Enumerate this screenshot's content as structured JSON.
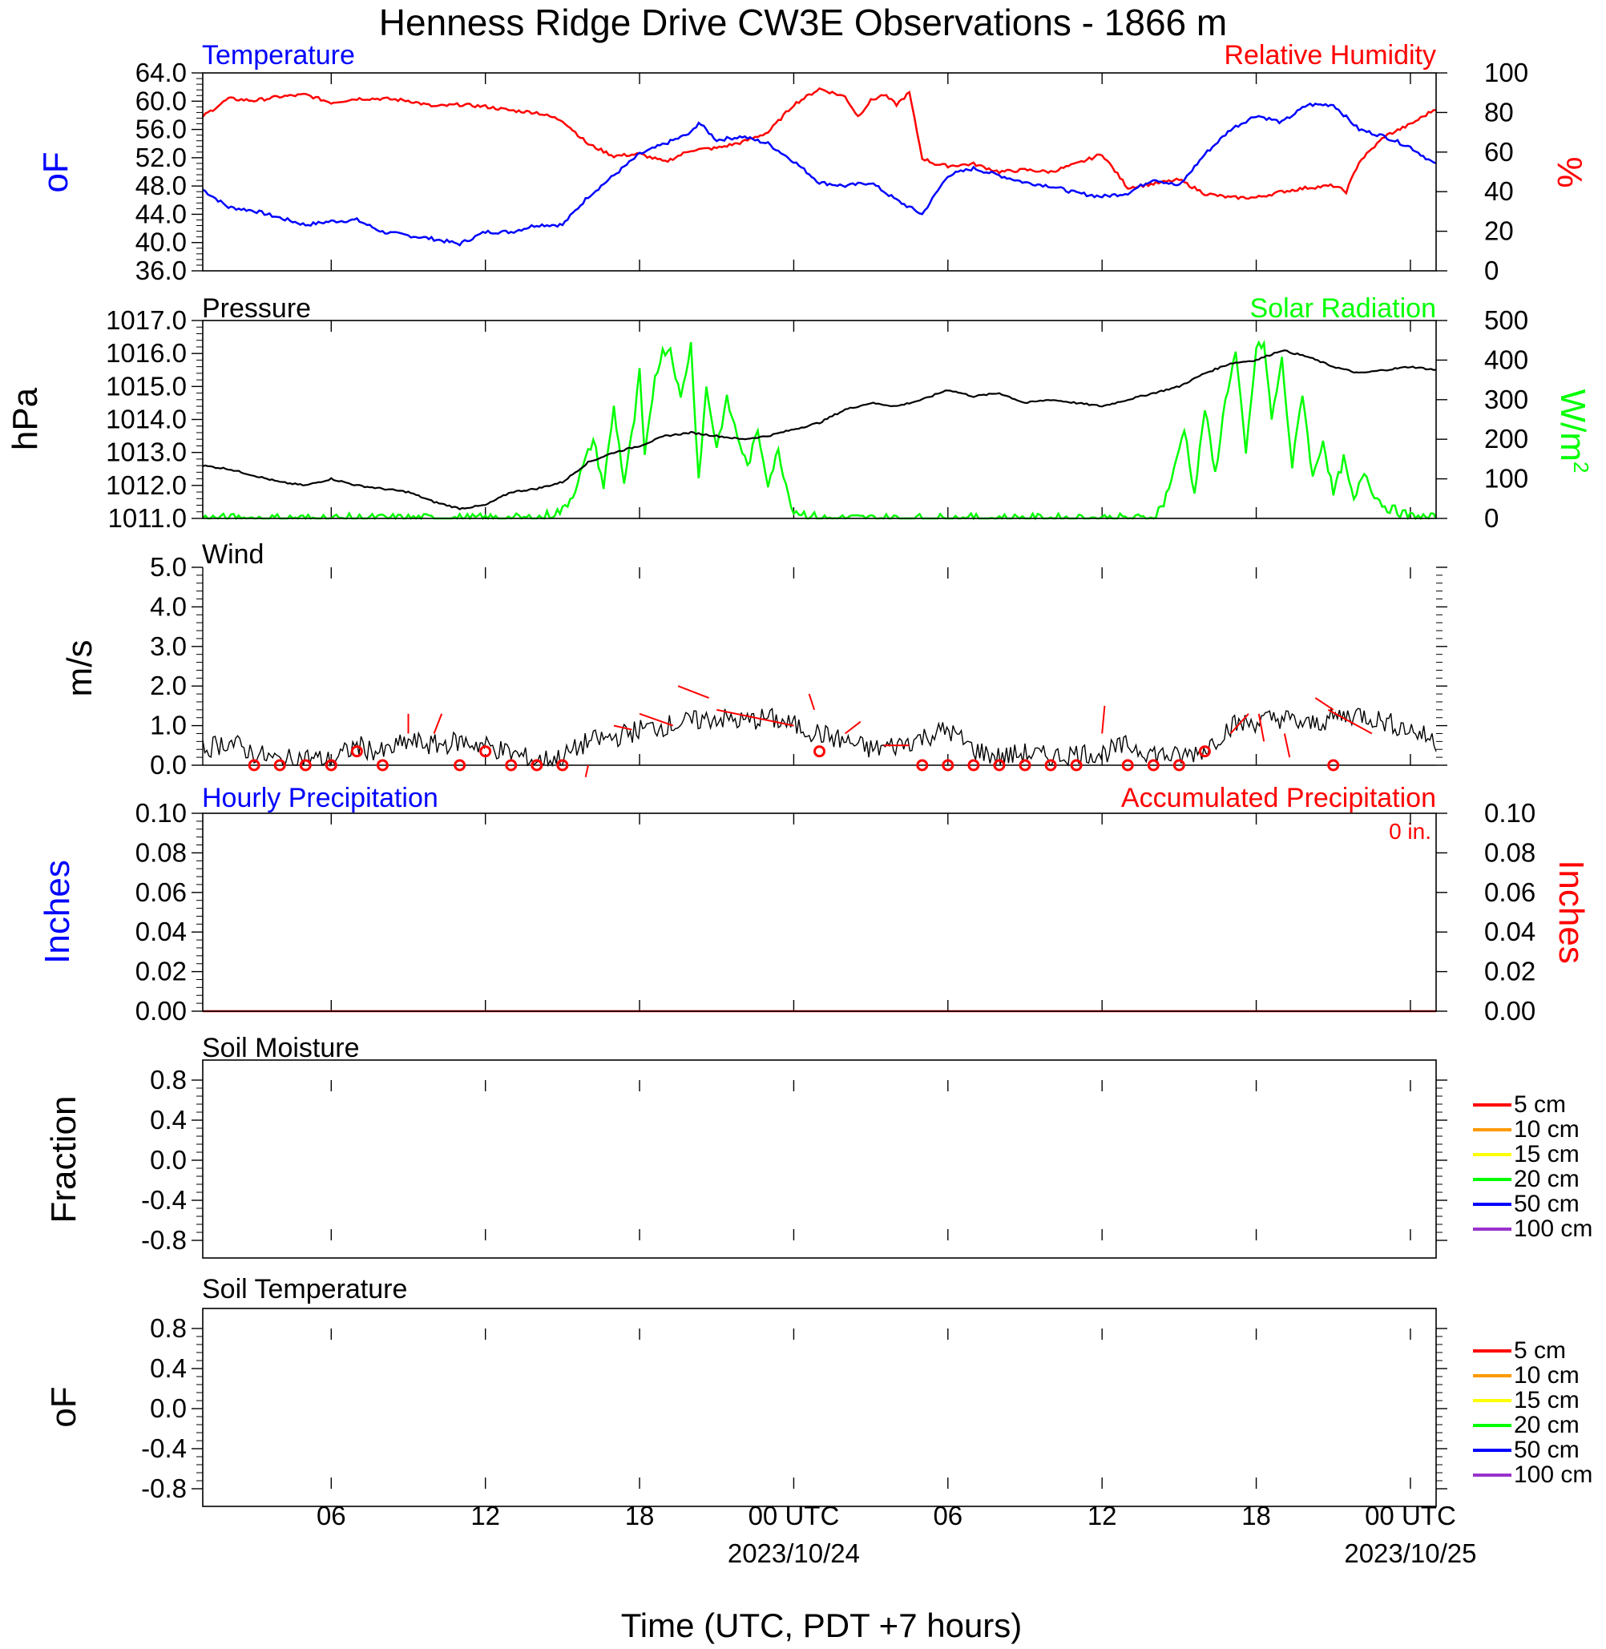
{
  "title": "Henness Ridge Drive CW3E Observations - 1866 m",
  "x_axis": {
    "title": "Time (UTC, PDT +7 hours)",
    "ticks": [
      {
        "hour": 6,
        "label": "06"
      },
      {
        "hour": 12,
        "label": "12"
      },
      {
        "hour": 18,
        "label": "18"
      },
      {
        "hour": 24,
        "label": "00 UTC",
        "date": "2023/10/24"
      },
      {
        "hour": 30,
        "label": "06"
      },
      {
        "hour": 36,
        "label": "12"
      },
      {
        "hour": 42,
        "label": "18"
      },
      {
        "hour": 48,
        "label": "00 UTC",
        "date": "2023/10/25"
      }
    ],
    "range_hours": [
      1,
      49
    ]
  },
  "colors": {
    "temperature": "#0000ff",
    "humidity": "#ff0000",
    "pressure": "#000000",
    "solar": "#00ff00",
    "wind": "#000000",
    "wind_barb": "#ff0000",
    "hourly_precip": "#0000ff",
    "accum_precip": "#ff0000"
  },
  "panels": {
    "temp_rh": {
      "left_title": "Temperature",
      "right_title": "Relative Humidity",
      "left_unit": "oF",
      "right_unit": "%",
      "left_ticks": [
        "64.0",
        "60.0",
        "56.0",
        "52.0",
        "48.0",
        "44.0",
        "40.0",
        "36.0"
      ],
      "right_ticks": [
        "100",
        "80",
        "60",
        "40",
        "20",
        "0"
      ]
    },
    "pressure_solar": {
      "left_title": "Pressure",
      "right_title": "Solar Radiation",
      "left_unit": "hPa",
      "right_unit": "W/m",
      "right_unit_sup": "2",
      "left_ticks": [
        "1017.0",
        "1016.0",
        "1015.0",
        "1014.0",
        "1013.0",
        "1012.0",
        "1011.0"
      ],
      "right_ticks": [
        "500",
        "400",
        "300",
        "200",
        "100",
        "0"
      ]
    },
    "wind": {
      "left_title": "Wind",
      "left_unit": "m/s",
      "left_ticks": [
        "5.0",
        "4.0",
        "3.0",
        "2.0",
        "1.0",
        "0.0"
      ]
    },
    "precip": {
      "left_title": "Hourly Precipitation",
      "right_title": "Accumulated Precipitation",
      "total_label": "0 in.",
      "left_unit": "Inches",
      "right_unit": "Inches",
      "left_ticks": [
        "0.10",
        "0.08",
        "0.06",
        "0.04",
        "0.02",
        "0.00"
      ],
      "right_ticks": [
        "0.10",
        "0.08",
        "0.06",
        "0.04",
        "0.02",
        "0.00"
      ]
    },
    "soil_moisture": {
      "left_title": "Soil Moisture",
      "left_unit": "Fraction",
      "left_ticks": [
        "0.8",
        "0.4",
        "0.0",
        "-0.4",
        "-0.8"
      ]
    },
    "soil_temperature": {
      "left_title": "Soil Temperature",
      "left_unit": "oF",
      "left_ticks": [
        "0.8",
        "0.4",
        "0.0",
        "-0.4",
        "-0.8"
      ]
    }
  },
  "soil_legend": [
    {
      "label": "5 cm",
      "color": "#ff0000"
    },
    {
      "label": "10 cm",
      "color": "#ff9900"
    },
    {
      "label": "15 cm",
      "color": "#ffff00"
    },
    {
      "label": "20 cm",
      "color": "#00ff00"
    },
    {
      "label": "50 cm",
      "color": "#0000ff"
    },
    {
      "label": "100 cm",
      "color": "#9933cc"
    }
  ],
  "chart_data": [
    {
      "type": "line",
      "title": "Temperature",
      "ylabel": "oF",
      "ylim": [
        36,
        64
      ],
      "x_units": "hours since 2023/10/23 00 UTC",
      "series": [
        {
          "name": "Temperature",
          "x": [
            1,
            2,
            3,
            4,
            5,
            6,
            7,
            8,
            9,
            10,
            11,
            12,
            13,
            14,
            15,
            16,
            17,
            18,
            19,
            20,
            20.3,
            21,
            22,
            23,
            24,
            25,
            26,
            27,
            28,
            29,
            30,
            31,
            32,
            33,
            34,
            35,
            36,
            37,
            38,
            39,
            40,
            41,
            42,
            43,
            44,
            45,
            46,
            47,
            48,
            49
          ],
          "y": [
            47.5,
            45,
            44.5,
            43.5,
            42.5,
            43,
            43.2,
            41.5,
            41,
            40.5,
            39.8,
            41.5,
            41.5,
            42.5,
            42.5,
            46.5,
            49.5,
            52.5,
            54,
            55.5,
            57,
            54.5,
            55,
            54,
            51.5,
            48.5,
            48,
            48.5,
            46,
            44,
            49.5,
            50.5,
            49.5,
            48.5,
            48,
            47,
            46.5,
            47,
            49,
            48,
            52.5,
            56,
            58,
            57,
            59.5,
            59.5,
            56,
            55,
            53.5,
            51
          ]
        }
      ]
    },
    {
      "type": "line",
      "title": "Relative Humidity",
      "ylabel": "%",
      "ylim": [
        0,
        100
      ],
      "series": [
        {
          "name": "Relative Humidity",
          "x": [
            1,
            2,
            3,
            4,
            5,
            6,
            7,
            8,
            9,
            10,
            11,
            12,
            13,
            14,
            15,
            16,
            17,
            18,
            19,
            20,
            21,
            22,
            23,
            24,
            25,
            26,
            26.5,
            27,
            27.5,
            28,
            28.5,
            29,
            29.5,
            30,
            31,
            32,
            33,
            34,
            35,
            36,
            37,
            38,
            39,
            40,
            41,
            42,
            43,
            44,
            45,
            45.5,
            46,
            47,
            48,
            49
          ],
          "y": [
            78,
            87,
            86,
            88,
            89,
            85,
            87,
            87,
            86,
            83,
            84,
            83,
            81,
            80,
            76,
            64,
            58,
            59,
            55,
            61,
            62,
            65,
            70,
            84,
            92,
            88,
            78,
            86,
            89,
            84,
            90,
            57,
            54,
            53,
            54,
            50,
            51,
            50,
            54,
            59,
            42,
            44,
            46,
            39,
            37,
            37,
            40,
            42,
            43,
            40,
            55,
            68,
            74,
            82
          ]
        }
      ]
    },
    {
      "type": "line",
      "title": "Pressure",
      "ylabel": "hPa",
      "ylim": [
        1011,
        1017
      ],
      "series": [
        {
          "name": "Pressure",
          "x": [
            1,
            2,
            3,
            4,
            5,
            6,
            7,
            8,
            9,
            10,
            11,
            12,
            13,
            14,
            15,
            16,
            17,
            18,
            19,
            20,
            21,
            22,
            23,
            24,
            25,
            26,
            27,
            28,
            29,
            30,
            31,
            32,
            33,
            34,
            35,
            36,
            37,
            38,
            39,
            40,
            41,
            42,
            43,
            44,
            45,
            46,
            47,
            48,
            49
          ],
          "y": [
            1012.6,
            1012.5,
            1012.3,
            1012.1,
            1012,
            1012.2,
            1012.0,
            1011.9,
            1011.8,
            1011.5,
            1011.3,
            1011.4,
            1011.8,
            1011.9,
            1012.1,
            1012.7,
            1013.0,
            1013.2,
            1013.5,
            1013.6,
            1013.5,
            1013.4,
            1013.5,
            1013.7,
            1013.9,
            1014.3,
            1014.5,
            1014.4,
            1014.6,
            1014.9,
            1014.7,
            1014.8,
            1014.5,
            1014.6,
            1014.5,
            1014.4,
            1014.6,
            1014.8,
            1015.0,
            1015.4,
            1015.7,
            1015.8,
            1016.1,
            1015.9,
            1015.6,
            1015.4,
            1015.5,
            1015.6,
            1015.5
          ]
        }
      ]
    },
    {
      "type": "line",
      "title": "Solar Radiation",
      "ylabel": "W/m2",
      "ylim": [
        0,
        500
      ],
      "series": [
        {
          "name": "Solar Radiation",
          "x": [
            1,
            14,
            15,
            15.4,
            15.8,
            16.2,
            16.6,
            17,
            17.4,
            17.8,
            18,
            18.2,
            18.6,
            18.9,
            19.2,
            19.6,
            20,
            20.3,
            20.6,
            21,
            21.4,
            21.8,
            22.2,
            22.6,
            23,
            23.4,
            23.8,
            24,
            25,
            38,
            38.4,
            38.8,
            39.2,
            39.6,
            40,
            40.4,
            40.8,
            41.2,
            41.6,
            42,
            42.3,
            42.6,
            43,
            43.4,
            43.8,
            44.2,
            44.6,
            45,
            45.4,
            45.8,
            46.2,
            46.6,
            47,
            47.4,
            48,
            49
          ],
          "y": [
            0,
            0,
            20,
            60,
            130,
            200,
            80,
            280,
            90,
            250,
            370,
            150,
            360,
            420,
            430,
            300,
            440,
            100,
            330,
            180,
            300,
            210,
            130,
            220,
            90,
            170,
            60,
            20,
            0,
            0,
            40,
            120,
            230,
            60,
            280,
            110,
            300,
            420,
            160,
            430,
            440,
            250,
            400,
            130,
            320,
            100,
            200,
            60,
            150,
            40,
            120,
            60,
            30,
            20,
            5,
            0
          ]
        }
      ]
    },
    {
      "type": "line",
      "title": "Wind",
      "ylabel": "m/s",
      "ylim": [
        0,
        5
      ],
      "series": [
        {
          "name": "Wind speed",
          "x": [
            1,
            2,
            3,
            4,
            5,
            6,
            7,
            8,
            9,
            10,
            11,
            12,
            13,
            14,
            15,
            16,
            17,
            18,
            19,
            20,
            21,
            22,
            23,
            24,
            25,
            26,
            27,
            28,
            29,
            30,
            31,
            32,
            33,
            34,
            35,
            36,
            37,
            38,
            39,
            40,
            41,
            42,
            43,
            44,
            45,
            46,
            47,
            48,
            49
          ],
          "y": [
            0.4,
            0.6,
            0.3,
            0.1,
            0.2,
            0.1,
            0.5,
            0.3,
            0.6,
            0.5,
            0.6,
            0.5,
            0.3,
            0.1,
            0.2,
            0.6,
            0.7,
            0.9,
            1.0,
            1.1,
            1.2,
            1.1,
            1.2,
            1.0,
            0.8,
            0.6,
            0.4,
            0.5,
            0.7,
            0.9,
            0.4,
            0.2,
            0.3,
            0.2,
            0.3,
            0.3,
            0.5,
            0.3,
            0.2,
            0.4,
            1.0,
            1.1,
            1.2,
            1.0,
            1.2,
            1.3,
            1.1,
            0.9,
            0.6
          ]
        }
      ]
    },
    {
      "type": "line",
      "title": "Hourly Precipitation",
      "ylabel": "Inches",
      "ylim": [
        0,
        0.1
      ],
      "series": [
        {
          "name": "Hourly Precipitation",
          "x": [
            1,
            49
          ],
          "y": [
            0,
            0
          ]
        },
        {
          "name": "Accumulated Precipitation",
          "x": [
            1,
            49
          ],
          "y": [
            0,
            0
          ]
        }
      ]
    }
  ]
}
